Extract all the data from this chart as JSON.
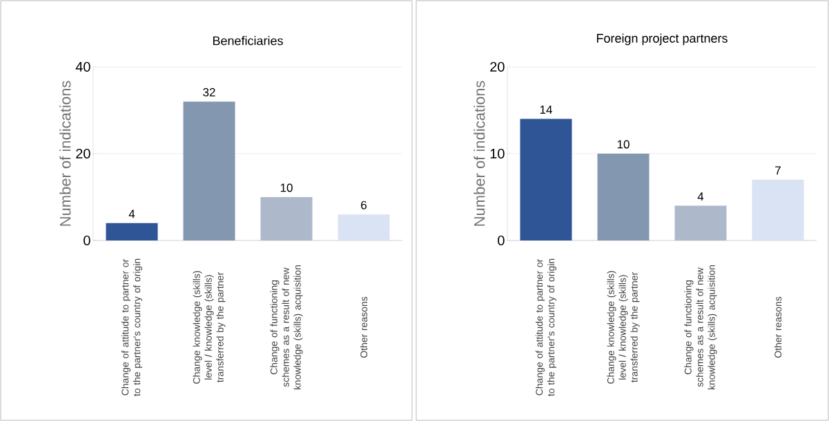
{
  "chart_data": [
    {
      "type": "bar",
      "title": "Beneficiaries",
      "ylabel": "Number of indications",
      "categories": [
        "Change of attitude to partner or to the partner's country of origin",
        "Change knowledge (skills) level / knowledge (skills) transferred by the partner",
        "Change of functioning schemes as a result of new knowledge (skills) acquisition",
        "Other reasons"
      ],
      "values": [
        4,
        32,
        10,
        6
      ],
      "colors": [
        "#2f5597",
        "#8497b0",
        "#adb9ca",
        "#dae3f3"
      ],
      "ylim": [
        0,
        40
      ],
      "yticks": [
        0,
        20,
        40
      ],
      "grid": "y",
      "data_labels": true
    },
    {
      "type": "bar",
      "title": "Foreign project partners",
      "ylabel": "Number of indications",
      "categories": [
        "Change of attitude to partner or to the partner's country of origin",
        "Change knowledge (skills) level / knowledge (skills) transferred by the partner",
        "Change of functioning schemes as a result of new knowledge (skills) acquisition",
        "Other reasons"
      ],
      "values": [
        14,
        10,
        4,
        7
      ],
      "colors": [
        "#2f5597",
        "#8497b0",
        "#adb9ca",
        "#dae3f3"
      ],
      "ylim": [
        0,
        20
      ],
      "yticks": [
        0,
        10,
        20
      ],
      "grid": "y",
      "data_labels": true
    }
  ]
}
